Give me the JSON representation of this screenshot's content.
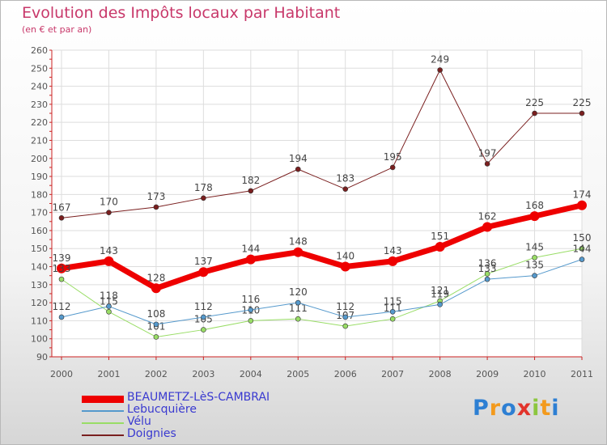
{
  "header": {
    "title": "Evolution des Impôts locaux par Habitant",
    "subtitle": "(en € et par an)"
  },
  "logo": {
    "letters": [
      {
        "ch": "P",
        "color": "#2d7fd3"
      },
      {
        "ch": "r",
        "color": "#f39a1d"
      },
      {
        "ch": "o",
        "color": "#2d7fd3"
      },
      {
        "ch": "x",
        "color": "#e2332b"
      },
      {
        "ch": "i",
        "color": "#8cc63f"
      },
      {
        "ch": "t",
        "color": "#f39a1d"
      },
      {
        "ch": "i",
        "color": "#2d7fd3"
      }
    ]
  },
  "chart_data": {
    "type": "line",
    "x": [
      "2000",
      "2001",
      "2002",
      "2003",
      "2004",
      "2005",
      "2006",
      "2007",
      "2008",
      "2009",
      "2010",
      "2011"
    ],
    "ylim": [
      90,
      260
    ],
    "yticks": [
      90,
      100,
      110,
      120,
      130,
      140,
      150,
      160,
      170,
      180,
      190,
      200,
      210,
      220,
      230,
      240,
      250,
      260
    ],
    "grid": true,
    "legend_position": "bottom-left",
    "series": [
      {
        "name": "Doignies",
        "color": "#7a1f1f",
        "width": 1,
        "marker": 3,
        "values": [
          167,
          170,
          173,
          178,
          182,
          194,
          183,
          195,
          249,
          197,
          225,
          225
        ],
        "labels": [
          "167",
          "170",
          "173",
          "178",
          "182",
          "194",
          "183",
          "195",
          "249",
          "197",
          "225",
          "225"
        ]
      },
      {
        "name": "Vélu",
        "color": "#99dd66",
        "width": 1,
        "marker": 3,
        "values": [
          133,
          115,
          101,
          105,
          110,
          111,
          107,
          111,
          121,
          136,
          145,
          150
        ],
        "labels": [
          "",
          "115",
          "101",
          "105",
          "110",
          "111",
          "107",
          "111",
          "121",
          "136",
          "145",
          "150"
        ]
      },
      {
        "name": "Lebucquière",
        "color": "#5599cc",
        "width": 1,
        "marker": 3,
        "values": [
          112,
          118,
          108,
          112,
          116,
          120,
          112,
          115,
          119,
          133,
          135,
          144
        ],
        "labels": [
          "112",
          "118",
          "108",
          "112",
          "116",
          "120",
          "112",
          "115",
          "119",
          "133",
          "135",
          "144"
        ]
      },
      {
        "name": "BEAUMETZ-LèS-CAMBRAI",
        "color": "#ee0000",
        "width": 7,
        "marker": 6,
        "values": [
          139,
          143,
          128,
          137,
          144,
          148,
          140,
          143,
          151,
          162,
          168,
          174
        ],
        "labels": [
          "139",
          "143",
          "128",
          "137",
          "144",
          "148",
          "140",
          "143",
          "151",
          "162",
          "168",
          "174"
        ]
      }
    ],
    "extra_labels": [
      {
        "text": "133",
        "x": "2000",
        "y": 133
      }
    ],
    "legend_order": [
      "BEAUMETZ-LèS-CAMBRAI",
      "Lebucquière",
      "Vélu",
      "Doignies"
    ]
  }
}
